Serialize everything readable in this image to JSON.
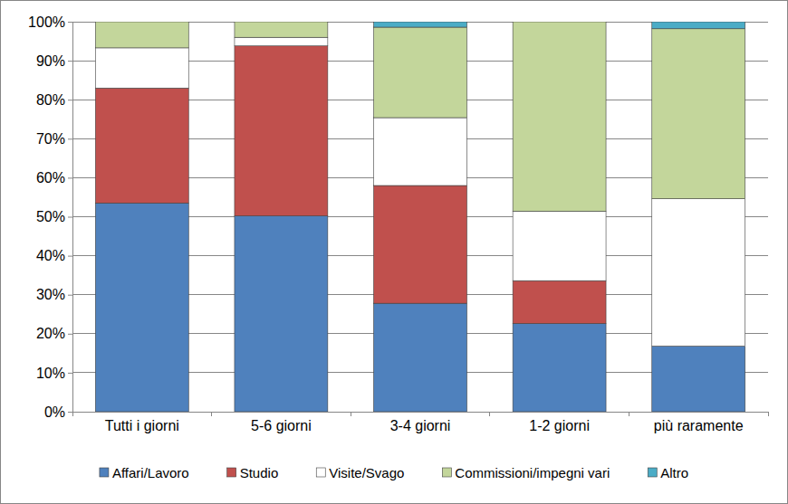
{
  "chart_data": {
    "type": "bar",
    "stacked": true,
    "grid": true,
    "legend": "bottom",
    "categories": [
      "Tutti i giorni",
      "5-6 giorni",
      "3-4 giorni",
      "1-2 giorni",
      "più raramente"
    ],
    "series": [
      {
        "name": "Affari/Lavoro",
        "color": "#4f81bd",
        "values": [
          53.5,
          50.2,
          27.8,
          22.6,
          16.8
        ]
      },
      {
        "name": "Studio",
        "color": "#c0504d",
        "values": [
          29.5,
          43.6,
          30.2,
          11.0,
          0
        ]
      },
      {
        "name": "Visite/Svago",
        "color": "#ffffff",
        "values": [
          10.3,
          2.2,
          17.4,
          17.8,
          37.8
        ]
      },
      {
        "name": "Commissioni/impegni vari",
        "color": "#c3d69b",
        "values": [
          6.7,
          4.0,
          23.2,
          48.6,
          43.6
        ]
      },
      {
        "name": "Altro",
        "color": "#4bacc6",
        "values": [
          0,
          0,
          1.4,
          0,
          1.8
        ]
      }
    ],
    "ylim": [
      0,
      100
    ],
    "yticks": [
      {
        "value": 0,
        "label": "0%"
      },
      {
        "value": 10,
        "label": "10%"
      },
      {
        "value": 20,
        "label": "20%"
      },
      {
        "value": 30,
        "label": "30%"
      },
      {
        "value": 40,
        "label": "40%"
      },
      {
        "value": 50,
        "label": "50%"
      },
      {
        "value": 60,
        "label": "60%"
      },
      {
        "value": 70,
        "label": "70%"
      },
      {
        "value": 80,
        "label": "80%"
      },
      {
        "value": 90,
        "label": "90%"
      },
      {
        "value": 100,
        "label": "100%"
      }
    ]
  }
}
